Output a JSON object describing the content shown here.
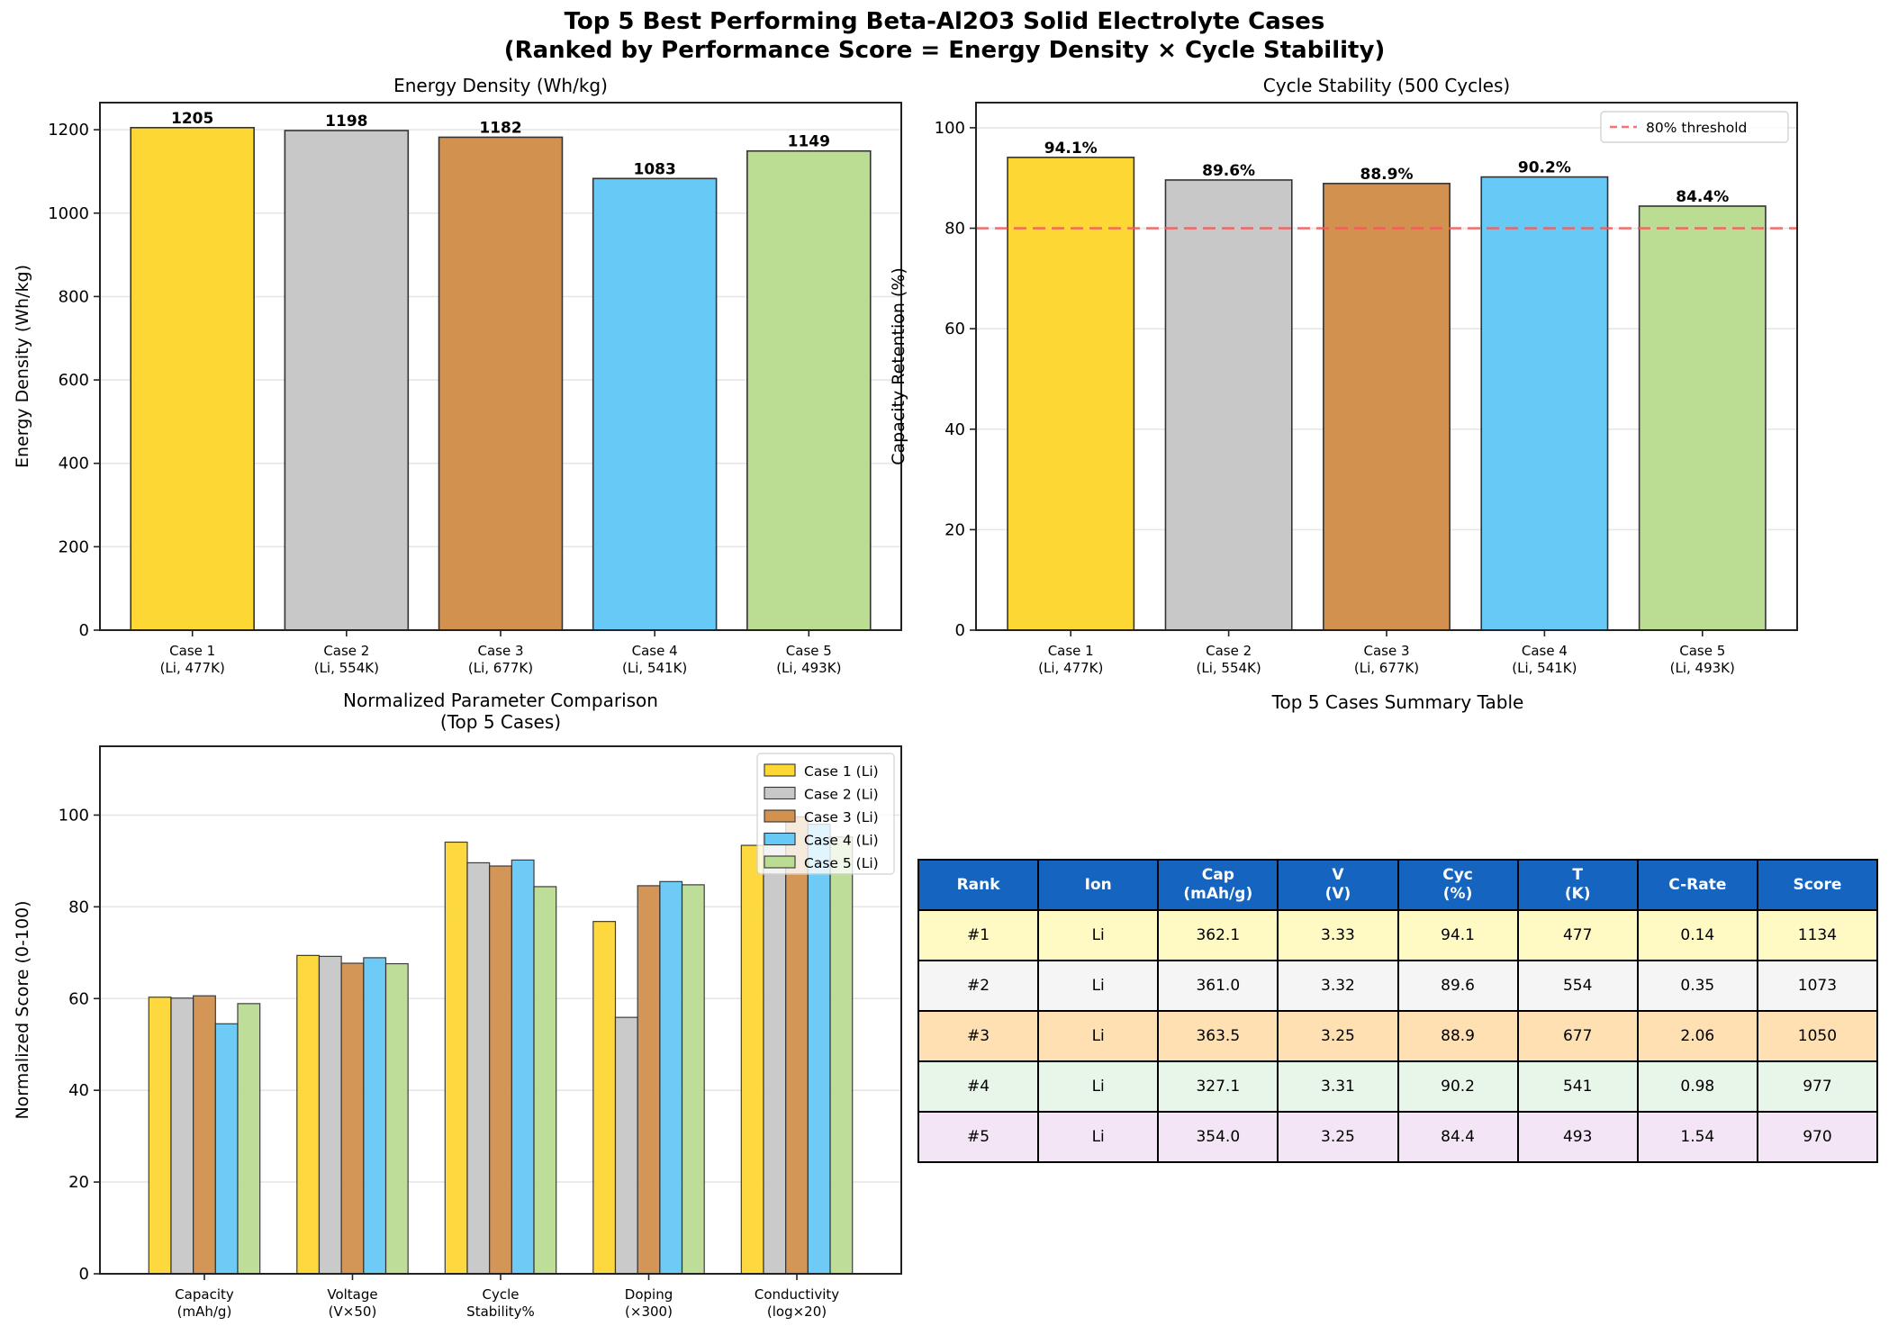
{
  "suptitle": {
    "line1": "Top 5 Best Performing Beta-Al2O3 Solid Electrolyte Cases",
    "line2": "(Ranked by Performance Score = Energy Density × Cycle Stability)"
  },
  "colors": {
    "case1": "#fdd835",
    "case2": "#c8c8c8",
    "case3": "#d2914e",
    "case4": "#67c9f5",
    "case5": "#badc93",
    "bar_edge": "#333333",
    "threshold": "#f25c5c",
    "table_header": "#1565c0"
  },
  "chart_data": [
    {
      "type": "bar",
      "title": "Energy Density (Wh/kg)",
      "xlabel": "",
      "ylabel": "Energy Density (Wh/kg)",
      "categories": [
        "Case 1\n(Li, 477K)",
        "Case 2\n(Li, 554K)",
        "Case 3\n(Li, 677K)",
        "Case 4\n(Li, 541K)",
        "Case 5\n(Li, 493K)"
      ],
      "values": [
        1205,
        1198,
        1182,
        1083,
        1149
      ],
      "data_labels": [
        "1205",
        "1198",
        "1182",
        "1083",
        "1149"
      ],
      "ylim": [
        0,
        1265
      ],
      "yticks": [
        0,
        200,
        400,
        600,
        800,
        1000,
        1200
      ],
      "grid": "y"
    },
    {
      "type": "bar",
      "title": "Cycle Stability (500 Cycles)",
      "xlabel": "",
      "ylabel": "Capacity Retention (%)",
      "categories": [
        "Case 1\n(Li, 477K)",
        "Case 2\n(Li, 554K)",
        "Case 3\n(Li, 677K)",
        "Case 4\n(Li, 541K)",
        "Case 5\n(Li, 493K)"
      ],
      "values": [
        94.1,
        89.6,
        88.9,
        90.2,
        84.4
      ],
      "data_labels": [
        "94.1%",
        "89.6%",
        "88.9%",
        "90.2%",
        "84.4%"
      ],
      "ylim": [
        0,
        105
      ],
      "yticks": [
        0,
        20,
        40,
        60,
        80,
        100
      ],
      "grid": "y",
      "reference_line": {
        "value": 80,
        "label": "80% threshold",
        "style": "dashed"
      },
      "legend": "top-right"
    },
    {
      "type": "bar",
      "title": "Normalized Parameter Comparison\n(Top 5 Cases)",
      "xlabel": "",
      "ylabel": "Normalized Score (0-100)",
      "categories": [
        "Capacity\n(mAh/g)",
        "Voltage\n(V×50)",
        "Cycle\nStability%",
        "Doping\n(×300)",
        "Conductivity\n(log×20)"
      ],
      "series": [
        {
          "name": "Case 1 (Li)",
          "values": [
            60.3,
            69.4,
            94.1,
            76.8,
            93.4
          ]
        },
        {
          "name": "Case 2 (Li)",
          "values": [
            60.1,
            69.2,
            89.6,
            55.9,
            96.0
          ]
        },
        {
          "name": "Case 3 (Li)",
          "values": [
            60.6,
            67.7,
            88.9,
            84.6,
            99.6
          ]
        },
        {
          "name": "Case 4 (Li)",
          "values": [
            54.5,
            68.9,
            90.2,
            85.5,
            98.0
          ]
        },
        {
          "name": "Case 5 (Li)",
          "values": [
            58.9,
            67.6,
            84.4,
            84.8,
            95.2
          ]
        }
      ],
      "ylim": [
        0,
        115
      ],
      "yticks": [
        0,
        20,
        40,
        60,
        80,
        100
      ],
      "grid": "y",
      "legend": "top-right"
    },
    {
      "type": "table",
      "title": "Top 5 Cases Summary Table",
      "columns": [
        "Rank",
        "Ion",
        "Cap\n(mAh/g)",
        "V\n(V)",
        "Cyc\n(%)",
        "T\n(K)",
        "C-Rate",
        "Score"
      ],
      "rows": [
        [
          "#1",
          "Li",
          "362.1",
          "3.33",
          "94.1",
          "477",
          "0.14",
          "1134"
        ],
        [
          "#2",
          "Li",
          "361.0",
          "3.32",
          "89.6",
          "554",
          "0.35",
          "1073"
        ],
        [
          "#3",
          "Li",
          "363.5",
          "3.25",
          "88.9",
          "677",
          "2.06",
          "1050"
        ],
        [
          "#4",
          "Li",
          "327.1",
          "3.31",
          "90.2",
          "541",
          "0.98",
          "977"
        ],
        [
          "#5",
          "Li",
          "354.0",
          "3.25",
          "84.4",
          "493",
          "1.54",
          "970"
        ]
      ],
      "row_colors": [
        "#fff9c4",
        "#f5f5f5",
        "#ffe0b2",
        "#e8f5e9",
        "#f3e5f5"
      ]
    }
  ]
}
